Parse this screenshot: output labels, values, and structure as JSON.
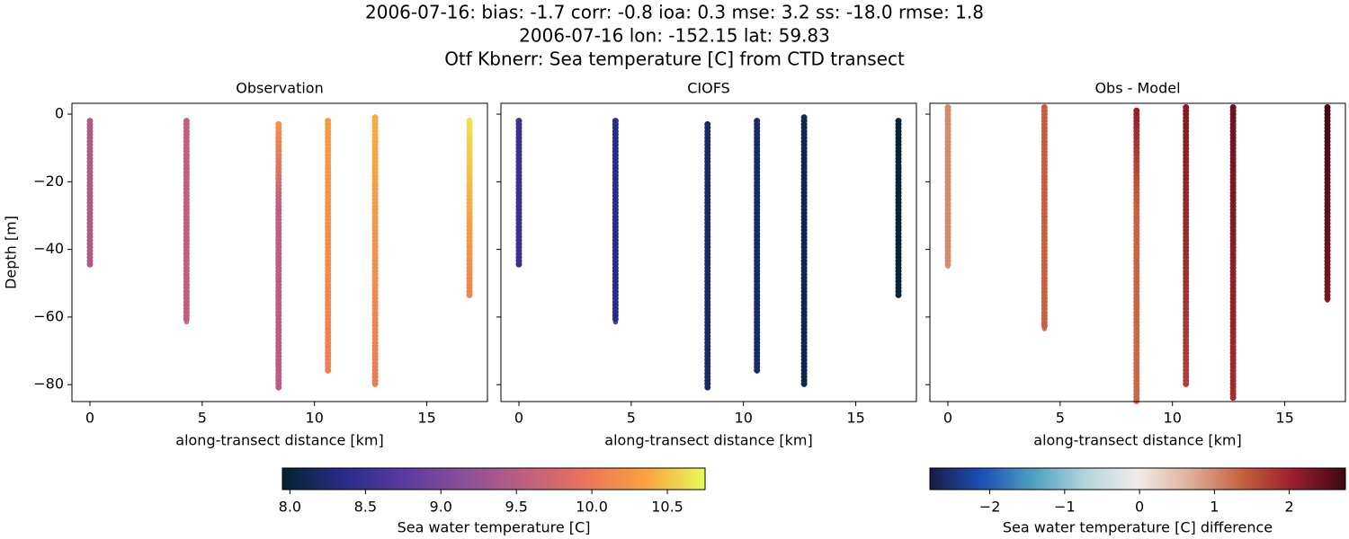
{
  "figure": {
    "title_lines": [
      "2006-07-16: bias: -1.7  corr: -0.8  ioa: 0.3  mse: 3.2  ss: -18.0  rmse: 1.8",
      "2006-07-16 lon: -152.15 lat: 59.83",
      "Otf Kbnerr: Sea temperature [C] from CTD transect"
    ]
  },
  "colorbars": [
    {
      "label": "Sea water temperature [C]",
      "lim": [
        7.95,
        10.75
      ],
      "ticks": [
        {
          "value": 8,
          "label": "8.0"
        },
        {
          "value": 8.5,
          "label": "8.5"
        },
        {
          "value": 9,
          "label": "9.0"
        },
        {
          "value": 9.5,
          "label": "9.5"
        },
        {
          "value": 10,
          "label": "10.0"
        },
        {
          "value": 10.5,
          "label": "10.5"
        }
      ],
      "colors": [
        "#04232e",
        "#282c88",
        "#5a3a9e",
        "#8a4f9a",
        "#bd5f80",
        "#e9735b",
        "#f9a140",
        "#e8fa5b"
      ]
    },
    {
      "label": "Sea water temperature [C] difference",
      "lim": [
        -2.8,
        2.75
      ],
      "ticks": [
        {
          "value": -2,
          "label": "−2"
        },
        {
          "value": -1,
          "label": "−1"
        },
        0,
        1,
        2
      ],
      "colors": [
        "#181c43",
        "#1d4fb6",
        "#4ea0c2",
        "#b5d5dc",
        "#f1ecea",
        "#e0b09c",
        "#c5623f",
        "#9a1d2d",
        "#3c0911"
      ]
    }
  ],
  "chart_data": [
    {
      "type": "scatter",
      "title": "Observation",
      "xlabel": "along-transect distance [km]",
      "ylabel": "Depth [m]",
      "xlim": [
        -0.8,
        17.7
      ],
      "ylim": [
        -85,
        3.2
      ],
      "xticks": [
        0,
        5,
        10,
        15
      ],
      "yticks": [
        0,
        {
          "value": -20,
          "label": "−20"
        },
        {
          "value": -40,
          "label": "−40"
        },
        {
          "value": -60,
          "label": "−60"
        },
        {
          "value": -80,
          "label": "−80"
        }
      ],
      "show_ytick_labels": true,
      "colorbar": 0,
      "profiles": [
        {
          "x": 0,
          "y": [
            -2,
            -44.5
          ],
          "c": [
            9.45,
            9.45
          ]
        },
        {
          "x": 4.3,
          "y": [
            -2,
            -61.5
          ],
          "c": [
            9.6,
            9.55
          ]
        },
        {
          "x": 8.4,
          "y": [
            -3,
            -28,
            -81
          ],
          "c": [
            10.2,
            9.55,
            9.5
          ]
        },
        {
          "x": 10.6,
          "y": [
            -2,
            -76
          ],
          "c": [
            10.3,
            10.05
          ]
        },
        {
          "x": 12.7,
          "y": [
            -1,
            -80
          ],
          "c": [
            10.4,
            10.0
          ]
        },
        {
          "x": 16.9,
          "y": [
            -2,
            -35,
            -53.5
          ],
          "c": [
            10.65,
            10.3,
            10.1
          ]
        }
      ]
    },
    {
      "type": "scatter",
      "title": "CIOFS",
      "xlabel": "along-transect distance [km]",
      "xlim": [
        -0.8,
        17.7
      ],
      "ylim": [
        -85,
        3.2
      ],
      "xticks": [
        0,
        5,
        10,
        15
      ],
      "yticks": [
        0,
        {
          "value": -20,
          "label": "−20"
        },
        {
          "value": -40,
          "label": "−40"
        },
        {
          "value": -60,
          "label": "−60"
        },
        {
          "value": -80,
          "label": "−80"
        }
      ],
      "show_ytick_labels": false,
      "colorbar": 0,
      "profiles": [
        {
          "x": 0,
          "y": [
            -2,
            -44.5
          ],
          "c": [
            8.5,
            8.5
          ]
        },
        {
          "x": 4.3,
          "y": [
            -2,
            -61.5
          ],
          "c": [
            8.35,
            8.35
          ]
        },
        {
          "x": 8.4,
          "y": [
            -3,
            -81
          ],
          "c": [
            8.2,
            8.2
          ]
        },
        {
          "x": 10.6,
          "y": [
            -2,
            -76
          ],
          "c": [
            8.2,
            8.2
          ]
        },
        {
          "x": 12.7,
          "y": [
            -1,
            -80
          ],
          "c": [
            8.1,
            8.1
          ]
        },
        {
          "x": 16.9,
          "y": [
            -2,
            -53.5
          ],
          "c": [
            8.0,
            8.0
          ]
        }
      ]
    },
    {
      "type": "scatter",
      "title": "Obs - Model",
      "xlabel": "along-transect distance [km]",
      "xlim": [
        -0.8,
        17.7
      ],
      "ylim": [
        -85,
        3.2
      ],
      "xticks": [
        0,
        5,
        10,
        15
      ],
      "yticks": [
        0,
        {
          "value": -20,
          "label": "−20"
        },
        {
          "value": -40,
          "label": "−40"
        },
        {
          "value": -60,
          "label": "−60"
        },
        {
          "value": -80,
          "label": "−80"
        }
      ],
      "show_ytick_labels": false,
      "colorbar": 1,
      "profiles": [
        {
          "x": 0,
          "y": [
            2,
            -45
          ],
          "c": [
            1.0,
            1.0
          ]
        },
        {
          "x": 4.3,
          "y": [
            2,
            -63.5
          ],
          "c": [
            1.4,
            1.35
          ]
        },
        {
          "x": 8.4,
          "y": [
            1,
            -27,
            -85
          ],
          "c": [
            2.1,
            1.35,
            1.3
          ]
        },
        {
          "x": 10.6,
          "y": [
            2,
            -80
          ],
          "c": [
            2.2,
            1.7
          ]
        },
        {
          "x": 12.7,
          "y": [
            2,
            -84
          ],
          "c": [
            2.4,
            1.9
          ]
        },
        {
          "x": 16.9,
          "y": [
            2,
            -55
          ],
          "c": [
            2.7,
            2.3
          ]
        }
      ]
    }
  ]
}
